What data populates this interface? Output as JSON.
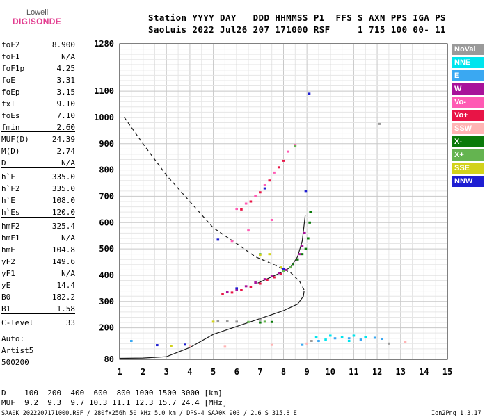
{
  "logo": {
    "top": "Lowell",
    "bottom": "DIGISONDE"
  },
  "header": {
    "line1": "Station YYYY DAY   DDD HHMMSS P1  FFS S AXN PPS IGA PS",
    "line2": "SaoLuis 2022 Jul26 207 171000 RSF     1 715 100 00- 11"
  },
  "params": [
    {
      "key": "foF2",
      "val": "8.900"
    },
    {
      "key": "foF1",
      "val": "N/A"
    },
    {
      "key": "foF1p",
      "val": "4.25"
    },
    {
      "key": "foE",
      "val": "3.31"
    },
    {
      "key": "foEp",
      "val": "3.15"
    },
    {
      "key": "fxI",
      "val": "9.10"
    },
    {
      "key": "foEs",
      "val": "7.10"
    },
    {
      "key": "fmin",
      "val": "2.60"
    },
    {
      "key": "MUF(D)",
      "val": "24.39"
    },
    {
      "key": "M(D)",
      "val": "2.74"
    },
    {
      "key": "D",
      "val": "N/A"
    },
    {
      "key": "h`F",
      "val": "335.0"
    },
    {
      "key": "h`F2",
      "val": "335.0"
    },
    {
      "key": "h`E",
      "val": "108.0"
    },
    {
      "key": "h`Es",
      "val": "120.0"
    },
    {
      "key": "hmF2",
      "val": "325.4"
    },
    {
      "key": "hmF1",
      "val": "N/A"
    },
    {
      "key": "hmE",
      "val": "104.8"
    },
    {
      "key": "yF2",
      "val": "149.6"
    },
    {
      "key": "yF1",
      "val": "N/A"
    },
    {
      "key": "yE",
      "val": "14.4"
    },
    {
      "key": "B0",
      "val": "182.2"
    },
    {
      "key": "B1",
      "val": "1.58"
    },
    {
      "key": "C-level",
      "val": "33"
    }
  ],
  "auto": {
    "label": "Auto:",
    "artist": "Artist5",
    "version": "500200"
  },
  "legend": [
    {
      "label": "NoVal",
      "color": "#9a9a9a"
    },
    {
      "label": "NNE",
      "color": "#00e5ee"
    },
    {
      "label": "E",
      "color": "#3aa8f2"
    },
    {
      "label": "W",
      "color": "#a8129a"
    },
    {
      "label": "Vo-",
      "color": "#ff5ab4"
    },
    {
      "label": "Vo+",
      "color": "#e81446"
    },
    {
      "label": "SSW",
      "color": "#ffb4b4"
    },
    {
      "label": "X-",
      "color": "#0a7a0a"
    },
    {
      "label": "X+",
      "color": "#64b450"
    },
    {
      "label": "SSE",
      "color": "#d2d21a"
    },
    {
      "label": "NNW",
      "color": "#1e1ed2"
    }
  ],
  "footer": {
    "dist_row": "D    100  200  400  600  800 1000 1500 3000 [km]",
    "muf_row": "MUF  9.2  9.3  9.7 10.3 11.1 12.3 15.7 24.4 [MHz]",
    "bottom_left": "SAA0K_2022207171000.RSF / 280fx256h 50 kHz 5.0 km / DPS-4 SAA0K 903 / 2.6 S 315.8 E",
    "bottom_right": "Ion2Png 1.3.17"
  },
  "chart_data": {
    "type": "scatter",
    "xlim": [
      1,
      15
    ],
    "ylim": [
      80,
      1280
    ],
    "xticks": [
      "1",
      "2",
      "3",
      "4",
      "5",
      "6",
      "7",
      "8",
      "9",
      "10",
      "11",
      "12",
      "13",
      "14",
      "15"
    ],
    "yticks": [
      {
        "value": 80,
        "label": "80"
      },
      {
        "value": 200,
        "label": "200"
      },
      {
        "value": 300,
        "label": "300"
      },
      {
        "value": 400,
        "label": "400"
      },
      {
        "value": 500,
        "label": "500"
      },
      {
        "value": 600,
        "label": "600"
      },
      {
        "value": 700,
        "label": "700"
      },
      {
        "value": 800,
        "label": "800"
      },
      {
        "value": 900,
        "label": "900"
      },
      {
        "value": 1000,
        "label": "1000"
      },
      {
        "value": 1100,
        "label": "1100"
      },
      {
        "value": 1280,
        "label": "1280"
      }
    ],
    "grid": true,
    "curves": [
      {
        "name": "mufDashed",
        "style": "dashed",
        "points": [
          [
            1.2,
            1000
          ],
          [
            2,
            900
          ],
          [
            3,
            780
          ],
          [
            4,
            680
          ],
          [
            5,
            580
          ],
          [
            6,
            520
          ],
          [
            6.8,
            470
          ],
          [
            7.6,
            440
          ],
          [
            8.3,
            410
          ],
          [
            8.7,
            375
          ],
          [
            8.9,
            340
          ]
        ]
      },
      {
        "name": "profileSolid",
        "style": "solid",
        "points": [
          [
            1,
            84
          ],
          [
            2,
            85
          ],
          [
            3,
            90
          ],
          [
            4,
            125
          ],
          [
            5,
            175
          ],
          [
            6,
            205
          ],
          [
            7,
            235
          ],
          [
            8,
            265
          ],
          [
            8.6,
            290
          ],
          [
            8.85,
            320
          ],
          [
            8.88,
            340
          ]
        ]
      },
      {
        "name": "traceO",
        "style": "solid",
        "points": [
          [
            6.9,
            370
          ],
          [
            7.4,
            390
          ],
          [
            7.9,
            410
          ],
          [
            8.3,
            430
          ],
          [
            8.6,
            470
          ],
          [
            8.8,
            530
          ],
          [
            8.93,
            630
          ]
        ]
      }
    ],
    "series": [
      {
        "name": "W",
        "color": "#a8129a",
        "points": [
          [
            5.6,
            335
          ],
          [
            6.0,
            345
          ],
          [
            6.4,
            358
          ],
          [
            6.8,
            372
          ],
          [
            7.2,
            385
          ],
          [
            7.5,
            396
          ],
          [
            7.8,
            408
          ],
          [
            8.1,
            420
          ],
          [
            8.4,
            440
          ],
          [
            8.6,
            460
          ],
          [
            8.7,
            480
          ],
          [
            8.8,
            510
          ],
          [
            8.9,
            560
          ]
        ]
      },
      {
        "name": "Vo+",
        "color": "#e81446",
        "points": [
          [
            5.4,
            328
          ],
          [
            5.8,
            334
          ],
          [
            6.2,
            343
          ],
          [
            6.6,
            355
          ],
          [
            7.0,
            368
          ],
          [
            7.3,
            380
          ],
          [
            7.6,
            392
          ],
          [
            7.9,
            404
          ],
          [
            6.2,
            650
          ],
          [
            6.6,
            680
          ],
          [
            7.0,
            715
          ],
          [
            7.4,
            760
          ],
          [
            7.8,
            810
          ],
          [
            8.0,
            835
          ]
        ]
      },
      {
        "name": "Vo-",
        "color": "#ff5ab4",
        "points": [
          [
            6.0,
            652
          ],
          [
            6.4,
            672
          ],
          [
            6.8,
            700
          ],
          [
            7.2,
            742
          ],
          [
            7.6,
            790
          ],
          [
            8.2,
            870
          ],
          [
            8.5,
            895
          ],
          [
            5.8,
            530
          ],
          [
            6.5,
            570
          ],
          [
            7.5,
            610
          ]
        ]
      },
      {
        "name": "X-",
        "color": "#0a7a0a",
        "points": [
          [
            8.4,
            440
          ],
          [
            8.6,
            460
          ],
          [
            8.8,
            480
          ],
          [
            8.95,
            500
          ],
          [
            9.05,
            540
          ],
          [
            9.12,
            600
          ],
          [
            9.15,
            640
          ],
          [
            7.0,
            220
          ],
          [
            7.5,
            222
          ]
        ]
      },
      {
        "name": "X+",
        "color": "#64b450",
        "points": [
          [
            6.5,
            222
          ],
          [
            7.2,
            223
          ],
          [
            8.0,
            415
          ],
          [
            8.3,
            430
          ],
          [
            8.5,
            890
          ],
          [
            7.0,
            480
          ]
        ]
      },
      {
        "name": "SSE",
        "color": "#d2d21a",
        "points": [
          [
            7.0,
            475
          ],
          [
            7.4,
            480
          ],
          [
            7.9,
            430
          ],
          [
            5.0,
            223
          ],
          [
            3.2,
            130
          ]
        ]
      },
      {
        "name": "NNW",
        "color": "#1e1ed2",
        "points": [
          [
            5.2,
            535
          ],
          [
            6.0,
            350
          ],
          [
            7.2,
            730
          ],
          [
            8.0,
            425
          ],
          [
            8.95,
            720
          ],
          [
            9.1,
            1090
          ],
          [
            2.6,
            134
          ],
          [
            3.8,
            136
          ]
        ]
      },
      {
        "name": "NNE",
        "color": "#00e5ee",
        "points": [
          [
            9.4,
            165
          ],
          [
            10.0,
            170
          ],
          [
            10.5,
            165
          ],
          [
            11.0,
            170
          ],
          [
            11.5,
            165
          ],
          [
            9.8,
            155
          ],
          [
            10.8,
            150
          ]
        ]
      },
      {
        "name": "E",
        "color": "#3aa8f2",
        "points": [
          [
            9.5,
            150
          ],
          [
            10.2,
            160
          ],
          [
            10.8,
            160
          ],
          [
            11.3,
            155
          ],
          [
            11.9,
            162
          ],
          [
            12.2,
            158
          ],
          [
            8.8,
            135
          ],
          [
            1.5,
            150
          ]
        ]
      },
      {
        "name": "SSW",
        "color": "#ffb4b4",
        "points": [
          [
            4.0,
            130
          ],
          [
            5.5,
            128
          ],
          [
            7.5,
            135
          ],
          [
            9.0,
            140
          ],
          [
            13.2,
            145
          ]
        ]
      },
      {
        "name": "NoVal",
        "color": "#9a9a9a",
        "points": [
          [
            5.2,
            225
          ],
          [
            5.6,
            224
          ],
          [
            6.0,
            223
          ],
          [
            7.0,
            230
          ],
          [
            9.2,
            150
          ],
          [
            12.5,
            140
          ],
          [
            12.1,
            975
          ]
        ]
      }
    ]
  }
}
